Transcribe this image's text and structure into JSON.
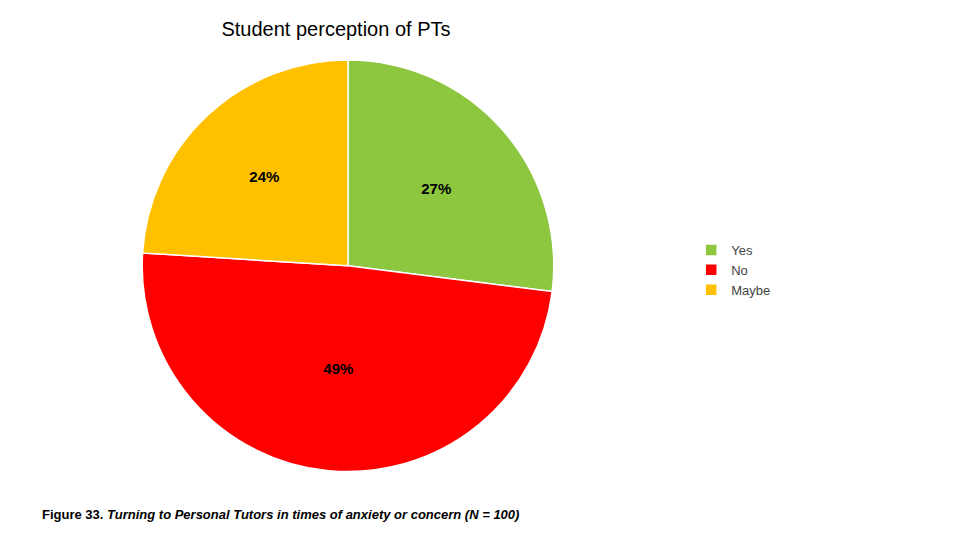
{
  "chart_data": {
    "type": "pie",
    "title": "Student perception of PTs",
    "categories": [
      "Yes",
      "No",
      "Maybe"
    ],
    "values": [
      27,
      49,
      24
    ],
    "value_labels": [
      "27%",
      "49%",
      "24%"
    ],
    "colors": [
      "#8DC63F",
      "#FF0000",
      "#FFC000"
    ],
    "data_labels": true,
    "legend": "right",
    "annotations": [
      "Figure 33.",
      "Turning to Personal Tutors in times of anxiety or concern (N = 100)"
    ]
  }
}
